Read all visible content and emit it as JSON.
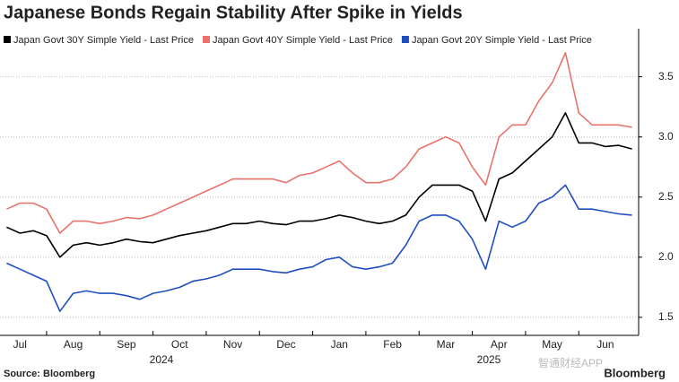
{
  "chart_data": {
    "type": "line",
    "title": "Japanese Bonds Regain Stability After Spike in Yields",
    "source": "Source: Bloomberg",
    "brand": "Bloomberg",
    "watermark": "智通财经APP",
    "year_labels": [
      "2024",
      "2025"
    ],
    "categories": [
      null,
      "Jul",
      null,
      null,
      null,
      "Aug",
      null,
      null,
      null,
      "Sep",
      null,
      null,
      null,
      "Oct",
      null,
      null,
      null,
      "Nov",
      null,
      null,
      null,
      "Dec",
      null,
      null,
      null,
      "Jan",
      null,
      null,
      null,
      "Feb",
      null,
      null,
      null,
      "Mar",
      null,
      null,
      null,
      "Apr",
      null,
      null,
      null,
      "May",
      null,
      null,
      null,
      "Jun",
      null,
      null
    ],
    "series": [
      {
        "name": "Japan Govt 30Y Simple Yield - Last Price",
        "color": "#000000",
        "values": [
          2.25,
          2.2,
          2.22,
          2.18,
          2.0,
          2.1,
          2.12,
          2.1,
          2.12,
          2.15,
          2.13,
          2.12,
          2.15,
          2.18,
          2.2,
          2.22,
          2.25,
          2.28,
          2.28,
          2.3,
          2.28,
          2.27,
          2.3,
          2.3,
          2.32,
          2.35,
          2.33,
          2.3,
          2.28,
          2.3,
          2.35,
          2.5,
          2.6,
          2.6,
          2.6,
          2.55,
          2.3,
          2.65,
          2.7,
          2.8,
          2.9,
          3.0,
          3.2,
          2.95,
          2.95,
          2.92,
          2.93,
          2.9
        ]
      },
      {
        "name": "Japan Govt 40Y Simple Yield - Last Price",
        "color": "#e8736c",
        "values": [
          2.4,
          2.45,
          2.45,
          2.4,
          2.2,
          2.3,
          2.3,
          2.28,
          2.3,
          2.33,
          2.32,
          2.35,
          2.4,
          2.45,
          2.5,
          2.55,
          2.6,
          2.65,
          2.65,
          2.65,
          2.65,
          2.62,
          2.68,
          2.7,
          2.75,
          2.8,
          2.7,
          2.62,
          2.62,
          2.65,
          2.75,
          2.9,
          2.95,
          3.0,
          2.95,
          2.75,
          2.6,
          3.0,
          3.1,
          3.1,
          3.3,
          3.45,
          3.7,
          3.2,
          3.1,
          3.1,
          3.1,
          3.08
        ]
      },
      {
        "name": "Japan Govt 20Y Simple Yield - Last Price",
        "color": "#1f4fbf",
        "values": [
          1.95,
          1.9,
          1.85,
          1.8,
          1.55,
          1.7,
          1.72,
          1.7,
          1.7,
          1.68,
          1.65,
          1.7,
          1.72,
          1.75,
          1.8,
          1.82,
          1.85,
          1.9,
          1.9,
          1.9,
          1.88,
          1.87,
          1.9,
          1.92,
          1.98,
          2.0,
          1.92,
          1.9,
          1.92,
          1.95,
          2.1,
          2.3,
          2.35,
          2.35,
          2.3,
          2.15,
          1.9,
          2.3,
          2.25,
          2.3,
          2.45,
          2.5,
          2.6,
          2.4,
          2.4,
          2.38,
          2.36,
          2.35
        ]
      }
    ],
    "ylim": [
      1.35,
      3.9
    ],
    "yticks": [
      1.5,
      {
        "value": 2,
        "label": "2.0"
      },
      2.5,
      {
        "value": 3,
        "label": "3.0"
      },
      3.5
    ],
    "grid": true
  }
}
